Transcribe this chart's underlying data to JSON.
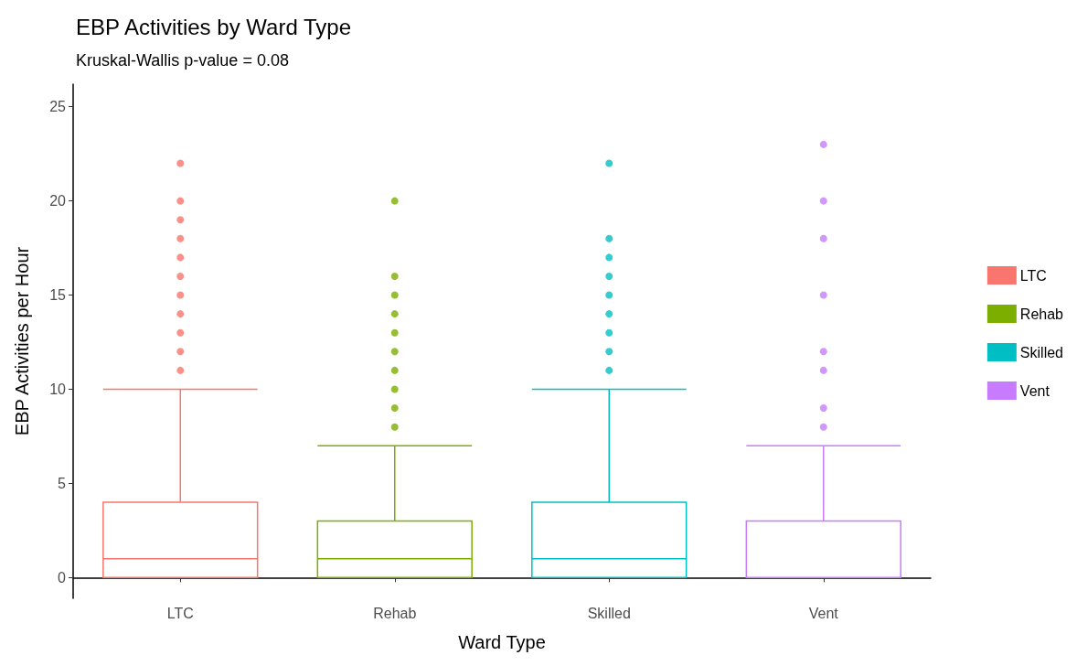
{
  "chart_data": {
    "type": "box",
    "title": "EBP Activities by Ward Type",
    "subtitle": "Kruskal-Wallis p-value = 0.08",
    "xlabel": "Ward Type",
    "ylabel": "EBP Activities per Hour",
    "categories": [
      "LTC",
      "Rehab",
      "Skilled",
      "Vent"
    ],
    "series": [
      {
        "name": "LTC",
        "color": "#f8766d",
        "boxes": [
          {
            "low": 0,
            "q1": 0,
            "median": 1,
            "q3": 4,
            "high": 10,
            "outliers": [
              11,
              12,
              13,
              14,
              15,
              16,
              17,
              18,
              19,
              20,
              22
            ]
          },
          null,
          null,
          null
        ]
      },
      {
        "name": "Rehab",
        "color": "#7cae00",
        "boxes": [
          null,
          {
            "low": 0,
            "q1": 0,
            "median": 1,
            "q3": 3,
            "high": 7,
            "outliers": [
              8,
              9,
              10,
              11,
              12,
              13,
              14,
              15,
              16,
              20
            ]
          },
          null,
          null
        ]
      },
      {
        "name": "Skilled",
        "color": "#00bfc4",
        "boxes": [
          null,
          null,
          {
            "low": 0,
            "q1": 0,
            "median": 1,
            "q3": 4,
            "high": 10,
            "outliers": [
              11,
              12,
              13,
              14,
              15,
              16,
              17,
              18,
              22
            ]
          },
          null
        ]
      },
      {
        "name": "Vent",
        "color": "#c77cff",
        "boxes": [
          null,
          null,
          null,
          {
            "low": 0,
            "q1": 0,
            "median": 0,
            "q3": 3,
            "high": 7,
            "outliers": [
              8,
              9,
              11,
              12,
              15,
              18,
              20,
              23
            ]
          }
        ]
      }
    ],
    "ylim": [
      -1.1,
      26.2
    ],
    "yticks": [
      0,
      5,
      10,
      15,
      20,
      25
    ],
    "grid": false,
    "legend": "right"
  }
}
